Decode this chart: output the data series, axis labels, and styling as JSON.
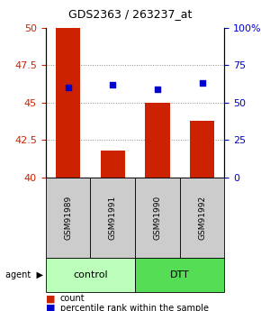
{
  "title": "GDS2363 / 263237_at",
  "samples": [
    "GSM91989",
    "GSM91991",
    "GSM91990",
    "GSM91992"
  ],
  "bar_values": [
    50.0,
    41.8,
    45.0,
    43.8
  ],
  "dot_values": [
    46.0,
    46.2,
    45.9,
    46.3
  ],
  "ylim_left": [
    40,
    50
  ],
  "ylim_right": [
    0,
    100
  ],
  "yticks_left": [
    40,
    42.5,
    45,
    47.5,
    50
  ],
  "yticks_right": [
    0,
    25,
    50,
    75,
    100
  ],
  "ytick_labels_right": [
    "0",
    "25",
    "50",
    "75",
    "100%"
  ],
  "bar_color": "#cc2200",
  "dot_color": "#0000cc",
  "control_color": "#bbffbb",
  "dtt_color": "#55dd55",
  "sample_box_color": "#cccccc",
  "bar_width": 0.55,
  "bar_bottom": 40.0,
  "title_fontsize": 9,
  "axis_fontsize": 8,
  "sample_fontsize": 6.5,
  "group_fontsize": 8,
  "legend_fontsize": 7
}
